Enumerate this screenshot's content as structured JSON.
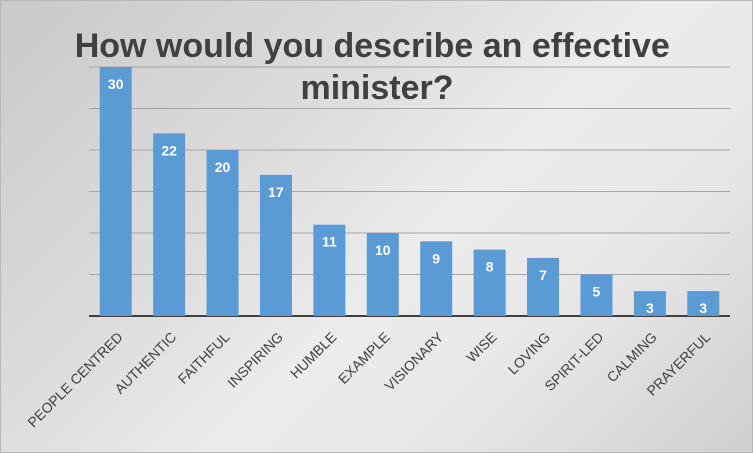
{
  "chart_data": {
    "type": "bar",
    "title": "How would you describe an effective minister?",
    "categories": [
      "PEOPLE CENTRED",
      "AUTHENTIC",
      "FAITHFUL",
      "INSPIRING",
      "HUMBLE",
      "EXAMPLE",
      "VISIONARY",
      "WISE",
      "LOVING",
      "SPIRIT-LED",
      "CALMING",
      "PRAYERFUL"
    ],
    "values": [
      30,
      22,
      20,
      17,
      11,
      10,
      9,
      8,
      7,
      5,
      3,
      3
    ],
    "ylim": [
      0,
      30
    ],
    "y_tick_step": 5,
    "y_ticks_visible": false,
    "grid": true,
    "data_labels": "inside-end",
    "bar_color": "#5b9bd5",
    "x_tick_rotation_deg": -45
  }
}
